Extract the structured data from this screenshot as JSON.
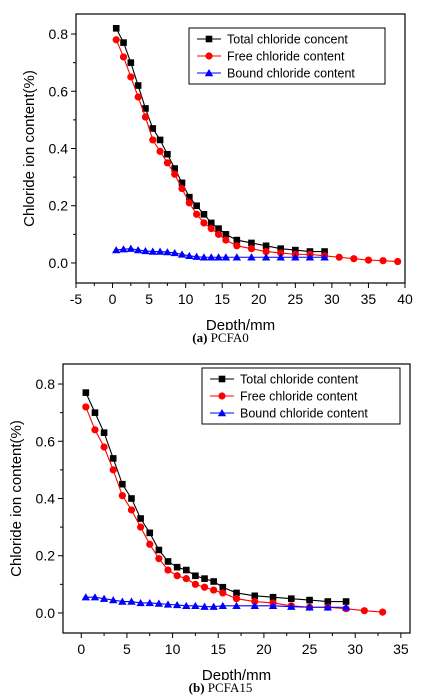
{
  "chart_data": [
    {
      "type": "line",
      "caption_letter": "(a)",
      "caption_text": "PCFA0",
      "xlabel": "Depth/mm",
      "ylabel": "Chloride ion content(%)",
      "xlim": [
        -5,
        40
      ],
      "ylim": [
        -0.07,
        0.87
      ],
      "x_ticks": [
        -5,
        0,
        5,
        10,
        15,
        20,
        25,
        30,
        35,
        40
      ],
      "y_ticks": [
        0.0,
        0.2,
        0.4,
        0.6,
        0.8
      ],
      "grid": false,
      "legend_position": "top-right",
      "series": [
        {
          "name": "Total chloride concent",
          "color": "#000000",
          "marker": "square",
          "x": [
            0.5,
            1.5,
            2.5,
            3.5,
            4.5,
            5.5,
            6.5,
            7.5,
            8.5,
            9.5,
            10.5,
            11.5,
            12.5,
            13.5,
            14.5,
            15.5,
            17,
            19,
            21,
            23,
            25,
            27,
            29
          ],
          "y": [
            0.82,
            0.77,
            0.7,
            0.62,
            0.54,
            0.47,
            0.43,
            0.38,
            0.33,
            0.28,
            0.23,
            0.2,
            0.17,
            0.14,
            0.12,
            0.1,
            0.08,
            0.07,
            0.06,
            0.05,
            0.045,
            0.04,
            0.04
          ]
        },
        {
          "name": "Free chloride content",
          "color": "#ff0000",
          "marker": "circle",
          "x": [
            0.5,
            1.5,
            2.5,
            3.5,
            4.5,
            5.5,
            6.5,
            7.5,
            8.5,
            9.5,
            10.5,
            11.5,
            12.5,
            13.5,
            14.5,
            15.5,
            17,
            19,
            21,
            23,
            25,
            27,
            29,
            31,
            33,
            35,
            37,
            39
          ],
          "y": [
            0.78,
            0.72,
            0.65,
            0.58,
            0.51,
            0.43,
            0.39,
            0.35,
            0.31,
            0.26,
            0.21,
            0.17,
            0.14,
            0.12,
            0.1,
            0.08,
            0.06,
            0.05,
            0.04,
            0.035,
            0.03,
            0.03,
            0.025,
            0.02,
            0.015,
            0.01,
            0.008,
            0.005
          ]
        },
        {
          "name": "Bound chloride content",
          "color": "#0000ff",
          "marker": "triangle",
          "x": [
            0.5,
            1.5,
            2.5,
            3.5,
            4.5,
            5.5,
            6.5,
            7.5,
            8.5,
            9.5,
            10.5,
            11.5,
            12.5,
            13.5,
            14.5,
            15.5,
            17,
            19,
            21,
            23,
            25,
            27,
            29
          ],
          "y": [
            0.045,
            0.048,
            0.05,
            0.045,
            0.042,
            0.04,
            0.04,
            0.038,
            0.035,
            0.03,
            0.025,
            0.022,
            0.02,
            0.02,
            0.02,
            0.02,
            0.02,
            0.02,
            0.02,
            0.02,
            0.02,
            0.02,
            0.02
          ]
        }
      ]
    },
    {
      "type": "line",
      "caption_letter": "(b)",
      "caption_text": "PCFA15",
      "xlabel": "Depth/mm",
      "ylabel": "Chloride ion content(%)",
      "xlim": [
        -2,
        36
      ],
      "ylim": [
        -0.07,
        0.87
      ],
      "x_ticks": [
        0,
        5,
        10,
        15,
        20,
        25,
        30,
        35
      ],
      "y_ticks": [
        0.0,
        0.2,
        0.4,
        0.6,
        0.8
      ],
      "grid": false,
      "legend_position": "top-right",
      "series": [
        {
          "name": "Total chloride content",
          "color": "#000000",
          "marker": "square",
          "x": [
            0.5,
            1.5,
            2.5,
            3.5,
            4.5,
            5.5,
            6.5,
            7.5,
            8.5,
            9.5,
            10.5,
            11.5,
            12.5,
            13.5,
            14.5,
            15.5,
            17,
            19,
            21,
            23,
            25,
            27,
            29
          ],
          "y": [
            0.77,
            0.7,
            0.63,
            0.54,
            0.45,
            0.4,
            0.33,
            0.28,
            0.22,
            0.18,
            0.16,
            0.15,
            0.13,
            0.12,
            0.11,
            0.09,
            0.07,
            0.06,
            0.055,
            0.05,
            0.045,
            0.04,
            0.04
          ]
        },
        {
          "name": "Free chloride content",
          "color": "#ff0000",
          "marker": "circle",
          "x": [
            0.5,
            1.5,
            2.5,
            3.5,
            4.5,
            5.5,
            6.5,
            7.5,
            8.5,
            9.5,
            10.5,
            11.5,
            12.5,
            13.5,
            14.5,
            15.5,
            17,
            19,
            21,
            23,
            25,
            27,
            29,
            31,
            33
          ],
          "y": [
            0.72,
            0.64,
            0.58,
            0.5,
            0.41,
            0.36,
            0.3,
            0.24,
            0.19,
            0.15,
            0.13,
            0.12,
            0.1,
            0.09,
            0.08,
            0.07,
            0.05,
            0.04,
            0.035,
            0.025,
            0.02,
            0.02,
            0.015,
            0.008,
            0.003
          ]
        },
        {
          "name": "Bound chloride content",
          "color": "#0000ff",
          "marker": "triangle",
          "x": [
            0.5,
            1.5,
            2.5,
            3.5,
            4.5,
            5.5,
            6.5,
            7.5,
            8.5,
            9.5,
            10.5,
            11.5,
            12.5,
            13.5,
            14.5,
            15.5,
            17,
            19,
            21,
            23,
            25,
            27,
            29
          ],
          "y": [
            0.055,
            0.055,
            0.05,
            0.045,
            0.04,
            0.04,
            0.035,
            0.035,
            0.033,
            0.03,
            0.028,
            0.025,
            0.025,
            0.022,
            0.022,
            0.025,
            0.025,
            0.025,
            0.025,
            0.022,
            0.02,
            0.02,
            0.02
          ]
        }
      ]
    }
  ]
}
